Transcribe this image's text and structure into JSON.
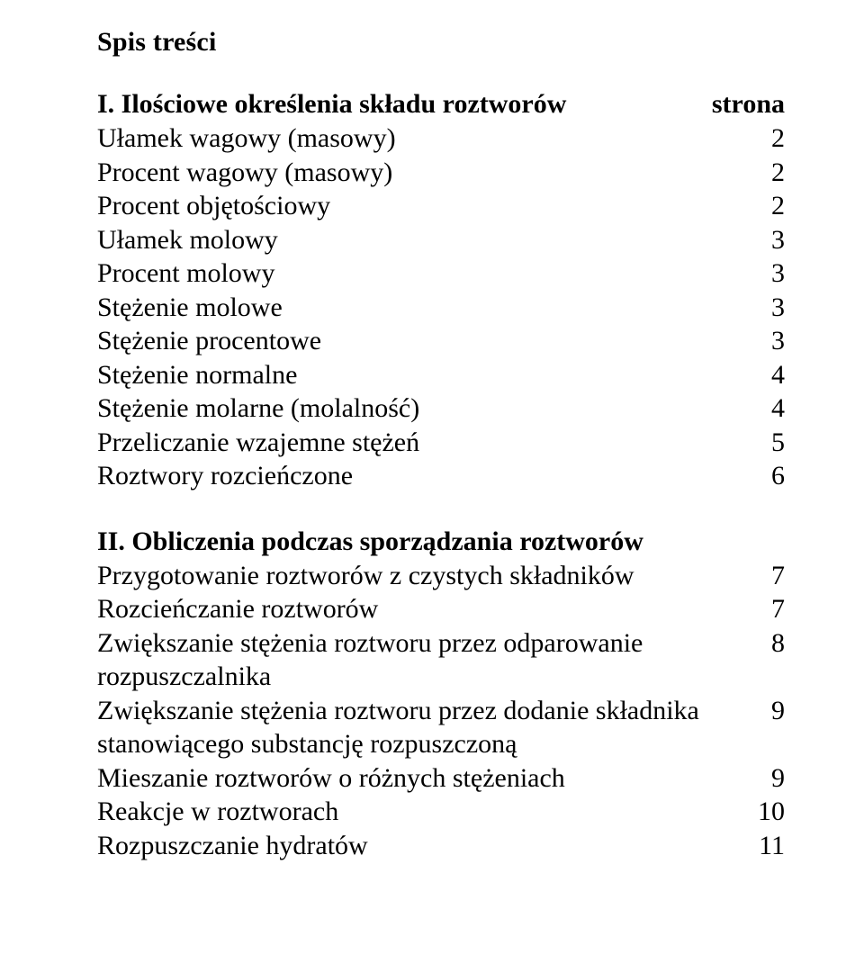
{
  "page": {
    "main_title": "Spis treści",
    "sections": [
      {
        "heading_label": "I. Ilościowe określenia składu roztworów",
        "heading_page": "strona",
        "items": [
          {
            "label": "Ułamek wagowy (masowy)",
            "page": "2"
          },
          {
            "label": "Procent wagowy (masowy)",
            "page": "2"
          },
          {
            "label": "Procent objętościowy",
            "page": "2"
          },
          {
            "label": "Ułamek molowy",
            "page": "3"
          },
          {
            "label": "Procent molowy",
            "page": "3"
          },
          {
            "label": "Stężenie molowe",
            "page": "3"
          },
          {
            "label": "Stężenie procentowe",
            "page": "3"
          },
          {
            "label": "Stężenie normalne",
            "page": "4"
          },
          {
            "label": "Stężenie molarne (molalność)",
            "page": "4"
          },
          {
            "label": "Przeliczanie wzajemne stężeń",
            "page": "5"
          },
          {
            "label": "Roztwory rozcieńczone",
            "page": "6"
          }
        ]
      },
      {
        "heading_label": "II. Obliczenia podczas sporządzania roztworów",
        "heading_page": "",
        "items": [
          {
            "label": "Przygotowanie roztworów z czystych składników",
            "page": "7"
          },
          {
            "label": "Rozcieńczanie roztworów",
            "page": "7"
          },
          {
            "label": "Zwiększanie stężenia roztworu przez odparowanie rozpuszczalnika",
            "page": "8"
          },
          {
            "label": "Zwiększanie stężenia roztworu przez dodanie składnika stanowiącego substancję rozpuszczoną",
            "page": "9"
          },
          {
            "label": "Mieszanie roztworów o różnych stężeniach",
            "page": "9"
          },
          {
            "label": "Reakcje w roztworach",
            "page": "10"
          },
          {
            "label": "Rozpuszczanie hydratów",
            "page": "11"
          }
        ]
      }
    ]
  }
}
